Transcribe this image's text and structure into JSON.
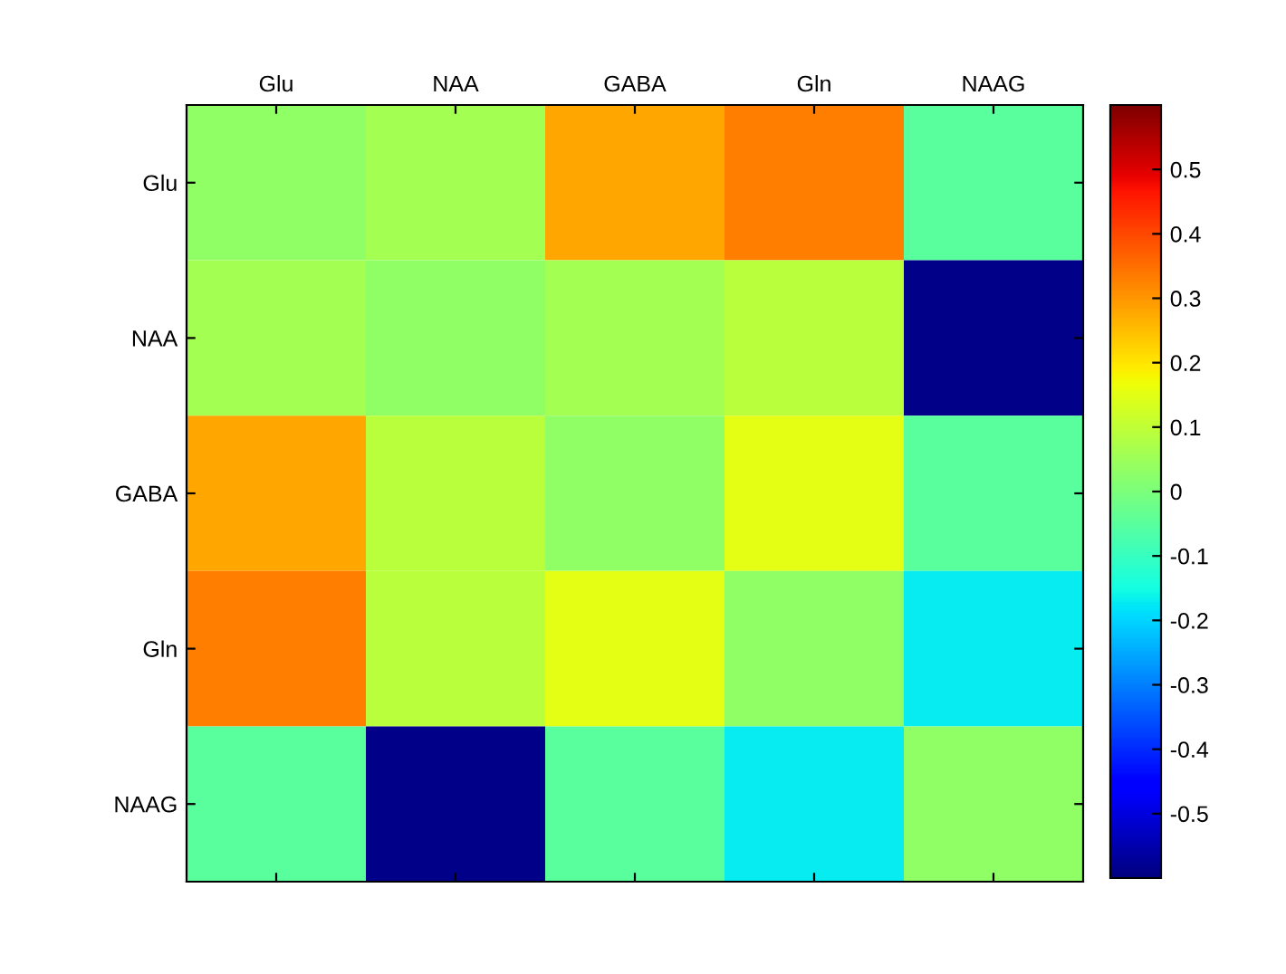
{
  "chart_data": {
    "type": "heatmap",
    "categories": [
      "Glu",
      "NAA",
      "GABA",
      "Gln",
      "NAAG"
    ],
    "y_categories": [
      "Glu",
      "NAA",
      "GABA",
      "Gln",
      "NAAG"
    ],
    "cells": [
      [
        0.03,
        0.06,
        0.28,
        0.33,
        -0.05
      ],
      [
        0.06,
        0.03,
        0.06,
        0.09,
        -0.59
      ],
      [
        0.28,
        0.09,
        0.03,
        0.15,
        -0.05
      ],
      [
        0.33,
        0.09,
        0.15,
        0.03,
        -0.17
      ],
      [
        -0.05,
        -0.59,
        -0.05,
        -0.17,
        0.03
      ]
    ],
    "clim": [
      -0.6,
      0.6
    ],
    "cticks": [
      -0.5,
      -0.4,
      -0.3,
      -0.2,
      -0.1,
      0,
      0.1,
      0.2,
      0.3,
      0.4,
      0.5
    ]
  }
}
